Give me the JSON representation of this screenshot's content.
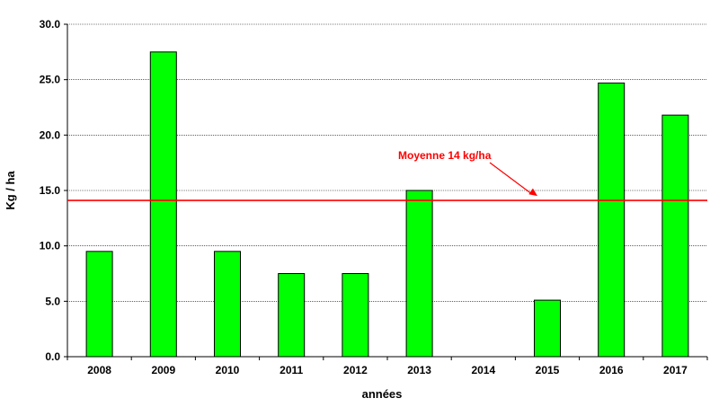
{
  "chart_data": {
    "type": "bar",
    "categories": [
      "2008",
      "2009",
      "2010",
      "2011",
      "2012",
      "2013",
      "2014",
      "2015",
      "2016",
      "2017"
    ],
    "values": [
      9.5,
      27.5,
      9.5,
      7.5,
      7.5,
      15.0,
      0,
      5.1,
      24.7,
      21.8
    ],
    "xlabel": "années",
    "ylabel": "Kg / ha",
    "ylim": [
      0,
      30
    ],
    "yticks": [
      "0.0",
      "5.0",
      "10.0",
      "15.0",
      "20.0",
      "25.0",
      "30.0"
    ],
    "grid": true,
    "bar_color": "#00ff00",
    "average_line": {
      "value": 14.1,
      "label": "Moyenne 14 kg/ha",
      "color": "#ff0000"
    }
  }
}
